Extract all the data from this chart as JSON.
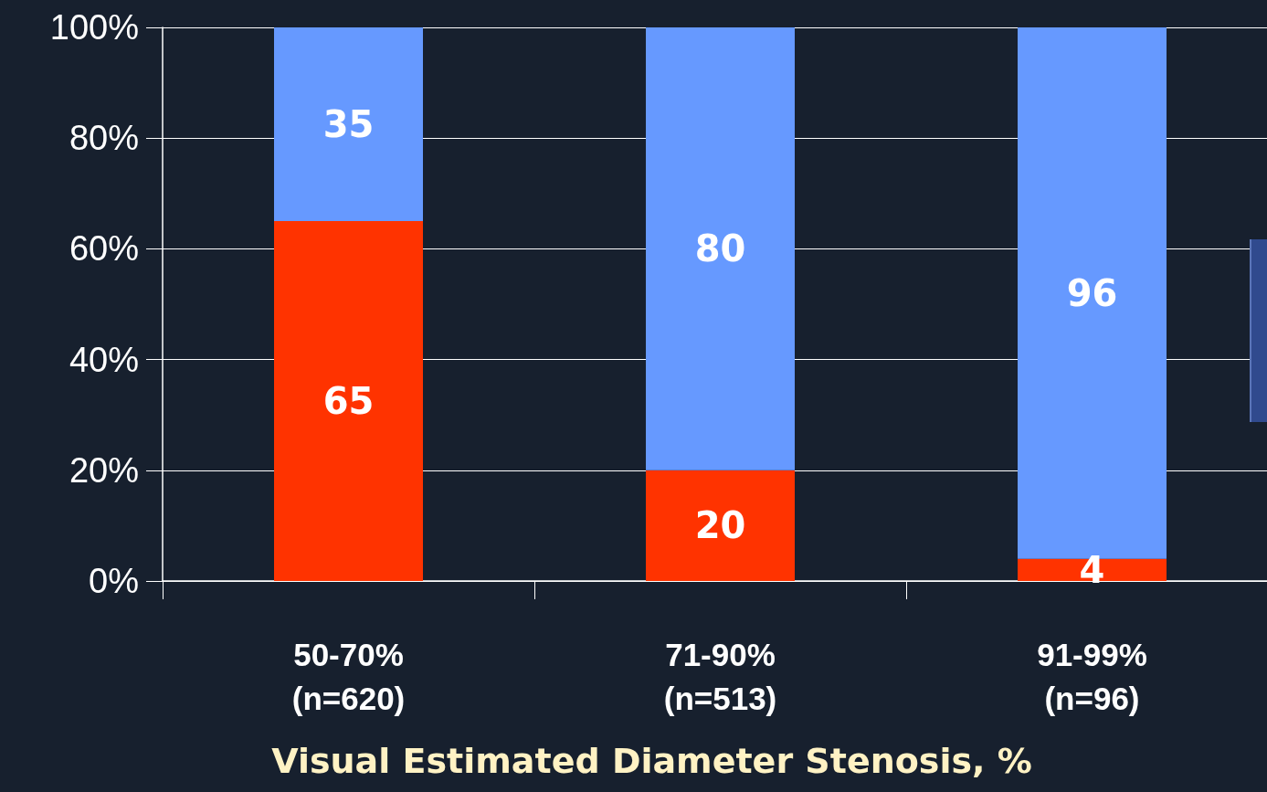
{
  "chart_data": {
    "type": "bar",
    "stacked": true,
    "xlabel": "Visual Estimated Diameter Stenosis, %",
    "categories": [
      "50-70%\n(n=620)",
      "71-90%\n(n=513)",
      "91-99%\n(n=96)"
    ],
    "series": [
      {
        "color": "#ff3300",
        "values": [
          65,
          20,
          4
        ]
      },
      {
        "color": "#6699ff",
        "values": [
          35,
          80,
          96
        ]
      }
    ],
    "ylim": [
      0,
      100
    ],
    "yticks": [
      {
        "value": 0,
        "label": "0%"
      },
      {
        "value": 20,
        "label": "20%"
      },
      {
        "value": 40,
        "label": "40%"
      },
      {
        "value": 60,
        "label": "60%"
      },
      {
        "value": 80,
        "label": "80%"
      },
      {
        "value": 100,
        "label": "100%"
      }
    ],
    "grid": "y",
    "data_labels": true
  }
}
